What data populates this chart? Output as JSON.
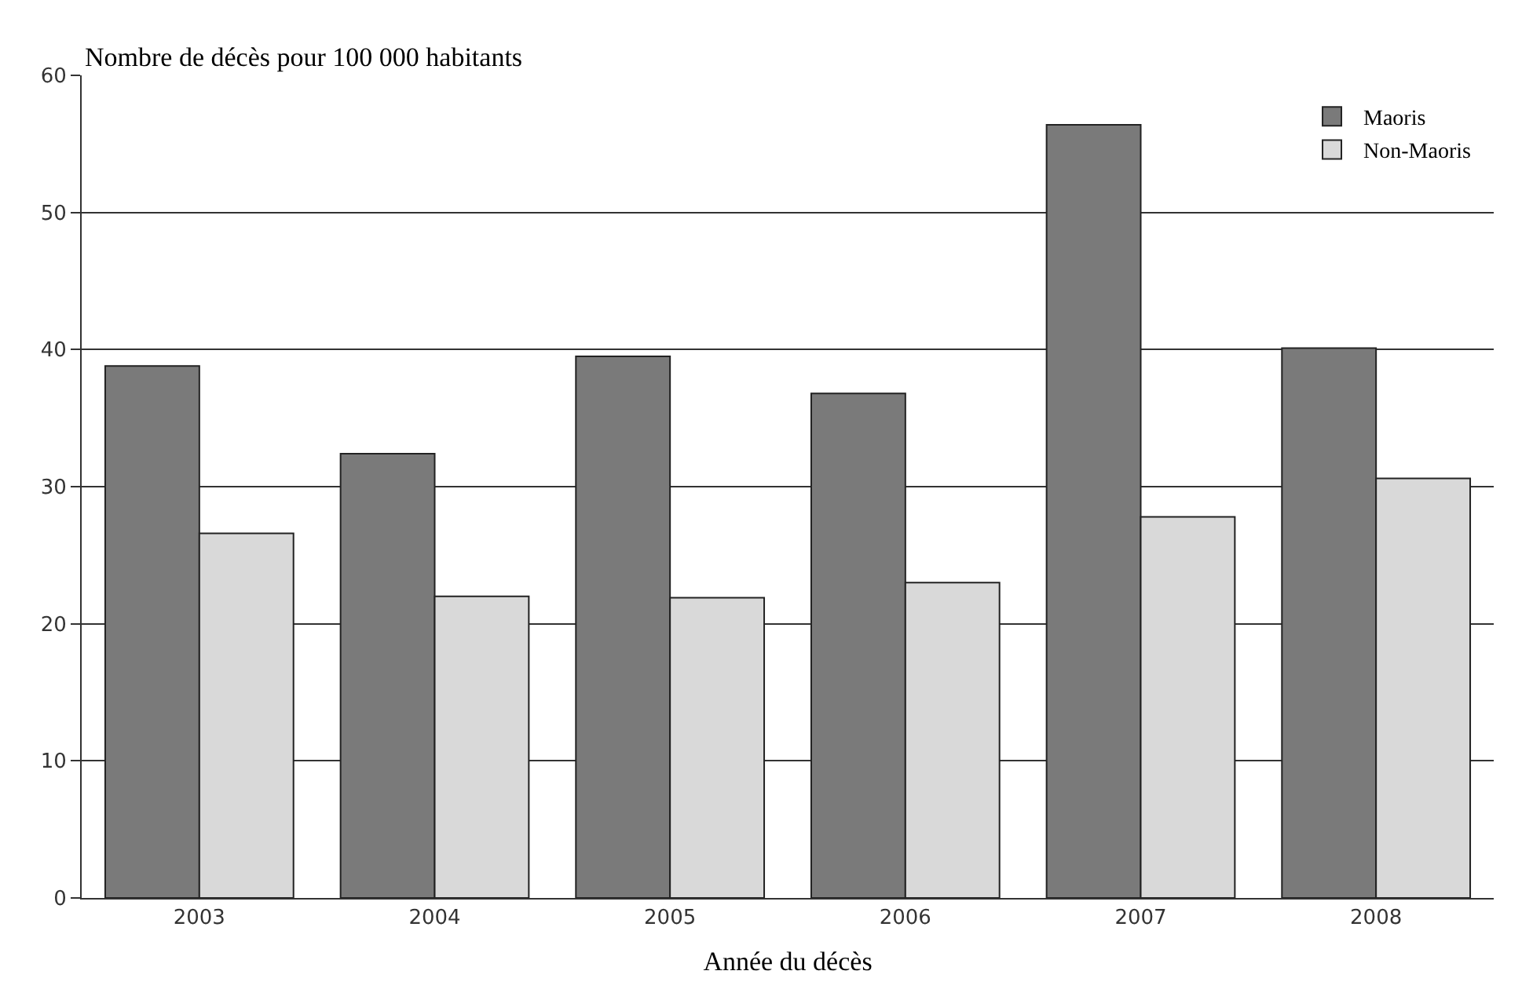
{
  "chart_data": {
    "type": "bar",
    "ylabel": "Nombre de décès pour 100 000 habitants",
    "xlabel": "Année du décès",
    "categories": [
      "2003",
      "2004",
      "2005",
      "2006",
      "2007",
      "2008"
    ],
    "series": [
      {
        "name": "Maoris",
        "color": "#7a7a7a",
        "values": [
          38.8,
          32.4,
          39.5,
          36.8,
          56.4,
          40.1
        ]
      },
      {
        "name": "Non-Maoris",
        "color": "#d9d9d9",
        "values": [
          26.6,
          22.0,
          21.9,
          23.0,
          27.8,
          30.6
        ]
      }
    ],
    "ylim": [
      0,
      60
    ],
    "yticks": [
      0,
      10,
      20,
      30,
      40,
      50,
      60
    ],
    "grid": "y",
    "legend": "top right"
  }
}
